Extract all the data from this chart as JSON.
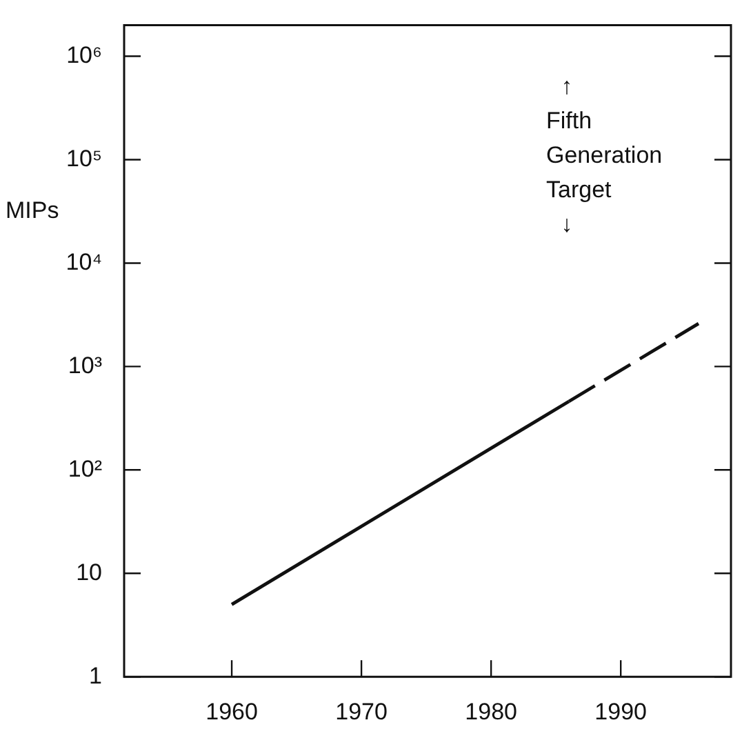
{
  "chart_data": {
    "type": "line",
    "ylabel": "MIPs",
    "annotations": [
      "↑",
      "Fifth Generation Target",
      "↓"
    ],
    "series": [
      {
        "color": "#111111",
        "line_style": "solid",
        "x": [
          1960,
          1986
        ],
        "values": [
          5,
          460
        ]
      },
      {
        "color": "#111111",
        "line_style": "dashed",
        "x": [
          1986,
          1996
        ],
        "values": [
          460,
          2600
        ]
      }
    ],
    "log": "y",
    "xlim": [
      1951.7,
      1998.5
    ],
    "ylim": [
      1,
      2000000
    ],
    "xticks": [
      1960,
      1970,
      1980,
      1990
    ],
    "yticks": [
      1,
      10,
      {
        "value": 100,
        "label": "10²"
      },
      {
        "value": 1000,
        "label": "10³"
      },
      {
        "value": 10000,
        "label": "10⁴"
      },
      {
        "value": 100000,
        "label": "10⁵"
      },
      {
        "value": 1000000,
        "label": "10⁶"
      }
    ],
    "grid": false,
    "legend": false,
    "marker": "none"
  }
}
